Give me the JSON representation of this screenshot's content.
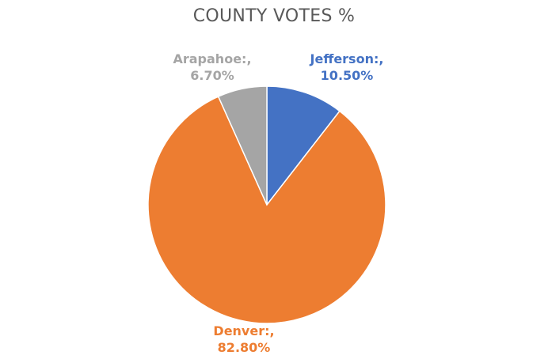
{
  "chart_data": {
    "type": "pie",
    "title": "COUNTY VOTES %",
    "slices": [
      {
        "name": "Jefferson:,",
        "value": 10.5,
        "value_label": "10.50%",
        "color": "#4472C4"
      },
      {
        "name": "Denver:,",
        "value": 82.8,
        "value_label": "82.80%",
        "color": "#ED7D31"
      },
      {
        "name": "Arapahoe:,",
        "value": 6.7,
        "value_label": "6.70%",
        "color": "#A5A5A5"
      }
    ],
    "start_angle": "12 o'clock",
    "direction": "clockwise",
    "legend": "none",
    "data_labels": "outside, colored by slice"
  }
}
